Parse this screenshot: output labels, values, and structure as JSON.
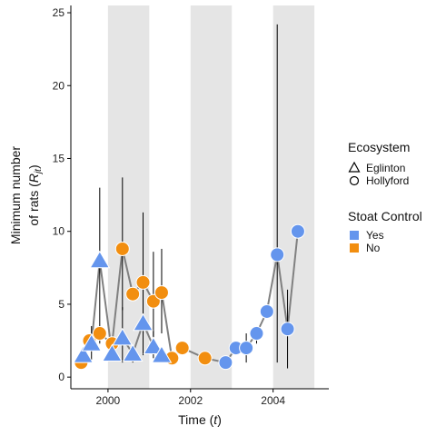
{
  "chart_data": {
    "type": "scatter",
    "xlabel_main": "Time (",
    "xlabel_var": "t",
    "xlabel_end": ")",
    "ylabel_line1": "Minimum  number",
    "ylabel_line2_main": "of rats (",
    "ylabel_line2_var": "R",
    "ylabel_line2_sub": "jt",
    "ylabel_line2_end": ")",
    "xlim": [
      1999.1,
      2005.35
    ],
    "ylim": [
      -0.8,
      25.5
    ],
    "x_ticks": [
      2000,
      2002,
      2004
    ],
    "x_tick_labels": [
      "2000",
      "2002",
      "2004"
    ],
    "y_ticks": [
      0,
      5,
      10,
      15,
      20,
      25
    ],
    "y_tick_labels": [
      "0",
      "5",
      "10",
      "15",
      "20",
      "25"
    ],
    "shaded_periods": [
      [
        2000,
        2001
      ],
      [
        2002,
        2003
      ],
      [
        2004,
        2005
      ]
    ],
    "shade_color": "#e5e5e5",
    "line_color": "#808080",
    "errorbar_color": "#000000",
    "colors": {
      "Yes": "#6495ed",
      "No": "#f28e0f"
    },
    "legend_ecosystem": {
      "title": "Ecosystem",
      "entries": [
        {
          "label": "Eglinton",
          "shape": "triangle"
        },
        {
          "label": "Hollyford",
          "shape": "circle"
        }
      ]
    },
    "legend_stoat": {
      "title": "Stoat Control",
      "entries": [
        {
          "label": "Yes",
          "color": "#6495ed"
        },
        {
          "label": "No",
          "color": "#f28e0f"
        }
      ]
    },
    "series": [
      {
        "ecosystem": "Eglinton",
        "shape": "triangle",
        "points": [
          {
            "x": 1999.4,
            "y": 1.5,
            "lo": 1.5,
            "hi": 1.5,
            "control": "Yes"
          },
          {
            "x": 1999.6,
            "y": 2.3,
            "lo": 1.2,
            "hi": 3.5,
            "control": "Yes"
          },
          {
            "x": 1999.8,
            "y": 8.0,
            "lo": 3.2,
            "hi": 13.0,
            "control": "Yes"
          },
          {
            "x": 2000.1,
            "y": 1.6,
            "lo": 1.6,
            "hi": 1.6,
            "control": "Yes"
          },
          {
            "x": 2000.35,
            "y": 2.7,
            "lo": 1.0,
            "hi": 4.8,
            "control": "Yes"
          },
          {
            "x": 2000.6,
            "y": 1.6,
            "lo": 1.0,
            "hi": 2.0,
            "control": "Yes"
          },
          {
            "x": 2000.85,
            "y": 3.7,
            "lo": 1.5,
            "hi": 6.5,
            "control": "Yes"
          },
          {
            "x": 2001.1,
            "y": 2.1,
            "lo": 1.3,
            "hi": 3.2,
            "control": "Yes"
          },
          {
            "x": 2001.3,
            "y": 1.5,
            "lo": 1.5,
            "hi": 1.5,
            "control": "Yes"
          }
        ]
      },
      {
        "ecosystem": "Hollyford",
        "shape": "circle",
        "points": [
          {
            "x": 1999.35,
            "y": 1.0,
            "lo": 1.0,
            "hi": 1.0,
            "control": "No"
          },
          {
            "x": 1999.55,
            "y": 2.5,
            "lo": 2.5,
            "hi": 2.5,
            "control": "No"
          },
          {
            "x": 1999.8,
            "y": 3.0,
            "lo": 2.3,
            "hi": 3.5,
            "control": "No"
          },
          {
            "x": 2000.1,
            "y": 2.3,
            "lo": 2.3,
            "hi": 2.3,
            "control": "No"
          },
          {
            "x": 2000.35,
            "y": 8.8,
            "lo": 4.6,
            "hi": 13.7,
            "control": "No"
          },
          {
            "x": 2000.6,
            "y": 5.7,
            "lo": 5.7,
            "hi": 5.7,
            "control": "No"
          },
          {
            "x": 2000.85,
            "y": 6.5,
            "lo": 3.0,
            "hi": 11.3,
            "control": "No"
          },
          {
            "x": 2001.1,
            "y": 5.2,
            "lo": 2.2,
            "hi": 8.6,
            "control": "No"
          },
          {
            "x": 2001.3,
            "y": 5.8,
            "lo": 3.0,
            "hi": 8.8,
            "control": "No"
          },
          {
            "x": 2001.55,
            "y": 1.3,
            "lo": 1.3,
            "hi": 1.3,
            "control": "No"
          },
          {
            "x": 2001.8,
            "y": 2.0,
            "lo": 2.0,
            "hi": 2.0,
            "control": "No"
          },
          {
            "x": 2002.35,
            "y": 1.3,
            "lo": 1.3,
            "hi": 1.3,
            "control": "No"
          },
          {
            "x": 2002.85,
            "y": 1.0,
            "lo": 1.0,
            "hi": 1.0,
            "control": "Yes"
          },
          {
            "x": 2003.1,
            "y": 2.0,
            "lo": 2.0,
            "hi": 2.0,
            "control": "Yes"
          },
          {
            "x": 2003.35,
            "y": 2.0,
            "lo": 1.0,
            "hi": 3.0,
            "control": "Yes"
          },
          {
            "x": 2003.6,
            "y": 3.0,
            "lo": 2.3,
            "hi": 3.5,
            "control": "Yes"
          },
          {
            "x": 2003.85,
            "y": 4.5,
            "lo": 4.5,
            "hi": 4.5,
            "control": "Yes"
          },
          {
            "x": 2004.1,
            "y": 8.4,
            "lo": 1.0,
            "hi": 24.2,
            "control": "Yes"
          },
          {
            "x": 2004.35,
            "y": 3.3,
            "lo": 0.6,
            "hi": 6.0,
            "control": "Yes"
          },
          {
            "x": 2004.6,
            "y": 10.0,
            "lo": 10.0,
            "hi": 10.0,
            "control": "Yes"
          }
        ]
      }
    ]
  }
}
